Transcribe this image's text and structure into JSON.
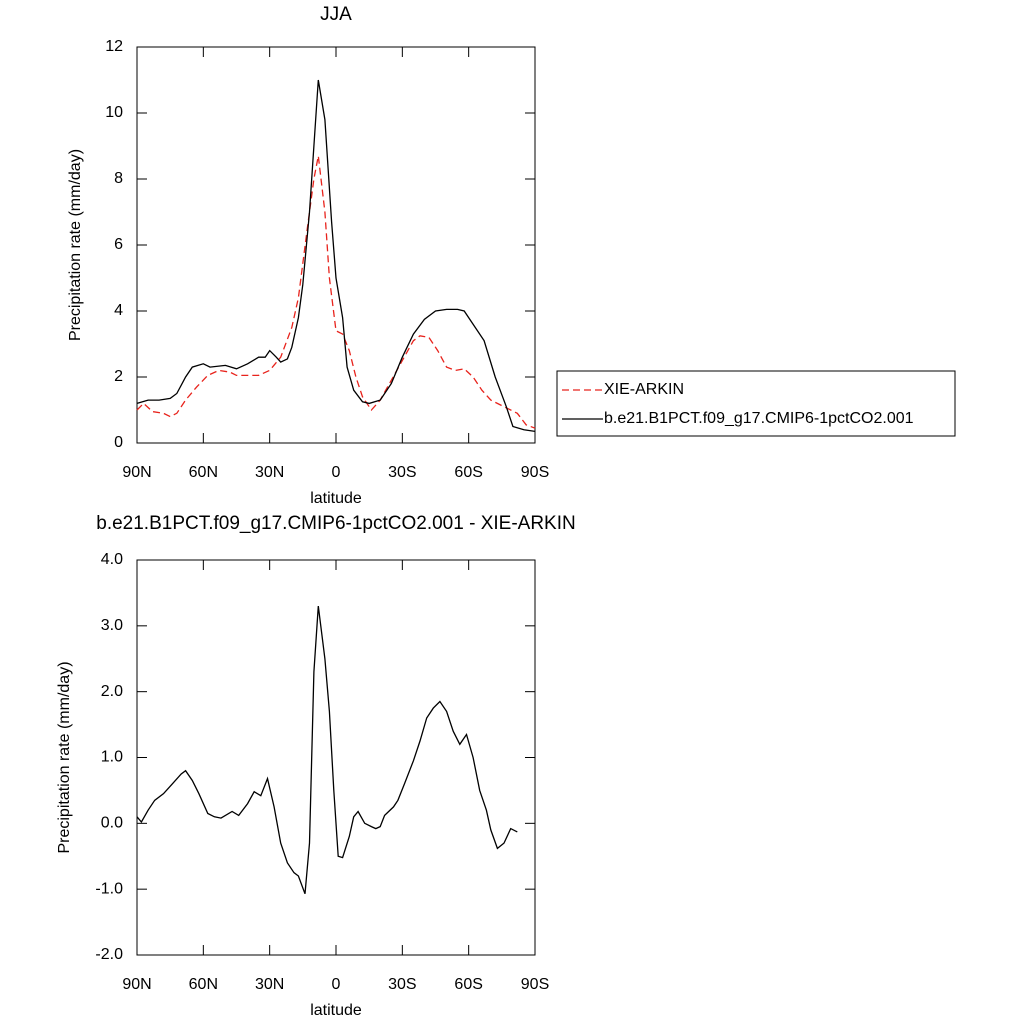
{
  "chart_data": [
    {
      "type": "line",
      "title": "JJA",
      "xlabel": "latitude",
      "ylabel": "Precipitation rate (mm/day)",
      "xlim": [
        90,
        -90
      ],
      "xticks": [
        {
          "value": 90,
          "label": "90N"
        },
        {
          "value": 60,
          "label": "60N"
        },
        {
          "value": 30,
          "label": "30N"
        },
        0,
        {
          "value": -30,
          "label": "30S"
        },
        {
          "value": -60,
          "label": "60S"
        },
        {
          "value": -90,
          "label": "90S"
        }
      ],
      "ylim": [
        0,
        12
      ],
      "yticks": [
        0,
        2,
        4,
        6,
        8,
        10,
        12
      ],
      "legend": "right",
      "series": [
        {
          "name": "XIE-ARKIN",
          "color": "#e8231c",
          "linestyle": "dashed",
          "x": [
            90,
            87,
            83,
            78,
            75,
            72,
            68,
            63,
            58,
            53,
            48,
            45,
            40,
            35,
            30,
            25,
            20,
            17,
            13,
            10,
            8,
            5,
            3,
            0,
            -3,
            -6,
            -9,
            -12,
            -16,
            -20,
            -25,
            -30,
            -35,
            -38,
            -42,
            -46,
            -50,
            -54,
            -58,
            -62,
            -66,
            -70,
            -76,
            -82,
            -86,
            -90
          ],
          "values": [
            1.0,
            1.2,
            0.95,
            0.9,
            0.8,
            0.9,
            1.3,
            1.7,
            2.05,
            2.2,
            2.15,
            2.05,
            2.05,
            2.05,
            2.2,
            2.6,
            3.5,
            4.4,
            6.5,
            8.0,
            8.7,
            7.0,
            5.0,
            3.4,
            3.3,
            2.8,
            2.0,
            1.4,
            1.0,
            1.3,
            1.9,
            2.5,
            3.1,
            3.25,
            3.2,
            2.8,
            2.3,
            2.2,
            2.25,
            2.0,
            1.6,
            1.3,
            1.1,
            0.9,
            0.55,
            0.45
          ]
        },
        {
          "name": "b.e21.B1PCT.f09_g17.CMIP6-1pctCO2.001",
          "color": "#000000",
          "linestyle": "solid",
          "x": [
            90,
            85,
            80,
            75,
            72,
            68,
            65,
            60,
            57,
            50,
            45,
            40,
            35,
            32,
            30,
            27,
            25,
            22,
            20,
            17,
            15,
            12,
            10,
            8,
            5,
            2,
            0,
            -3,
            -5,
            -8,
            -12,
            -15,
            -20,
            -25,
            -30,
            -35,
            -40,
            -45,
            -50,
            -55,
            -58,
            -62,
            -67,
            -72,
            -77,
            -80,
            -85,
            -90
          ],
          "values": [
            1.2,
            1.3,
            1.3,
            1.35,
            1.5,
            2.0,
            2.3,
            2.4,
            2.3,
            2.35,
            2.25,
            2.4,
            2.6,
            2.6,
            2.8,
            2.6,
            2.45,
            2.55,
            2.9,
            3.8,
            4.8,
            7.0,
            9.0,
            11.0,
            9.8,
            6.7,
            5.0,
            3.8,
            2.3,
            1.6,
            1.25,
            1.2,
            1.3,
            1.8,
            2.6,
            3.3,
            3.75,
            4.0,
            4.05,
            4.05,
            4.0,
            3.6,
            3.1,
            2.0,
            1.1,
            0.5,
            0.4,
            0.35
          ]
        }
      ]
    },
    {
      "type": "line",
      "title": "b.e21.B1PCT.f09_g17.CMIP6-1pctCO2.001 - XIE-ARKIN",
      "xlabel": "latitude",
      "ylabel": "Precipitation rate (mm/day)",
      "xlim": [
        90,
        -90
      ],
      "xticks": [
        {
          "value": 90,
          "label": "90N"
        },
        {
          "value": 60,
          "label": "60N"
        },
        {
          "value": 30,
          "label": "30N"
        },
        0,
        {
          "value": -30,
          "label": "30S"
        },
        {
          "value": -60,
          "label": "60S"
        },
        {
          "value": -90,
          "label": "90S"
        }
      ],
      "ylim": [
        -2,
        4
      ],
      "yticks": [
        {
          "value": -2,
          "label": "-2.0"
        },
        {
          "value": -1,
          "label": "-1.0"
        },
        {
          "value": 0,
          "label": "0.0"
        },
        {
          "value": 1,
          "label": "1.0"
        },
        {
          "value": 2,
          "label": "2.0"
        },
        {
          "value": 3,
          "label": "3.0"
        },
        {
          "value": 4,
          "label": "4.0"
        }
      ],
      "series": [
        {
          "color": "#000000",
          "linestyle": "solid",
          "x": [
            90,
            88,
            85,
            82,
            78,
            74,
            70,
            68,
            65,
            62,
            58,
            55,
            52,
            47,
            44,
            40,
            37,
            34,
            31,
            28,
            25,
            22,
            19,
            17,
            14,
            12,
            10,
            8,
            5,
            3,
            1,
            -1,
            -3,
            -6,
            -8,
            -10,
            -13,
            -16,
            -18,
            -20,
            -22,
            -26,
            -28,
            -31,
            -35,
            -38,
            -41,
            -44,
            -47,
            -50,
            -53,
            -56,
            -59,
            -62,
            -65,
            -68,
            -70,
            -73,
            -76,
            -79,
            -82
          ],
          "values": [
            0.1,
            0.02,
            0.2,
            0.35,
            0.45,
            0.6,
            0.75,
            0.8,
            0.65,
            0.45,
            0.15,
            0.1,
            0.08,
            0.18,
            0.12,
            0.3,
            0.48,
            0.42,
            0.68,
            0.25,
            -0.3,
            -0.6,
            -0.75,
            -0.8,
            -1.07,
            -0.3,
            2.3,
            3.3,
            2.5,
            1.7,
            0.5,
            -0.5,
            -0.52,
            -0.2,
            0.1,
            0.18,
            0.0,
            -0.05,
            -0.08,
            -0.05,
            0.12,
            0.25,
            0.35,
            0.6,
            0.95,
            1.25,
            1.6,
            1.75,
            1.85,
            1.7,
            1.4,
            1.2,
            1.35,
            1.0,
            0.5,
            0.2,
            -0.1,
            -0.38,
            -0.3,
            -0.08,
            -0.13
          ]
        }
      ]
    }
  ]
}
